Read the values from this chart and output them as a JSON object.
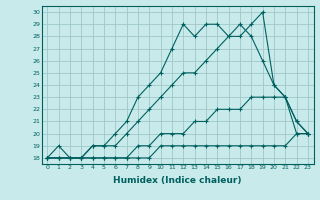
{
  "xlabel": "Humidex (Indice chaleur)",
  "ylabel": "",
  "xlim": [
    -0.5,
    23.5
  ],
  "ylim": [
    17.5,
    30.5
  ],
  "xticks": [
    0,
    1,
    2,
    3,
    4,
    5,
    6,
    7,
    8,
    9,
    10,
    11,
    12,
    13,
    14,
    15,
    16,
    17,
    18,
    19,
    20,
    21,
    22,
    23
  ],
  "yticks": [
    18,
    19,
    20,
    21,
    22,
    23,
    24,
    25,
    26,
    27,
    28,
    29,
    30
  ],
  "bg_color": "#c8eaea",
  "grid_color": "#a0c8c8",
  "line_color": "#006060",
  "line1": [
    18,
    19,
    18,
    18,
    19,
    19,
    20,
    21,
    23,
    24,
    25,
    27,
    29,
    28,
    29,
    29,
    28,
    29,
    28,
    26,
    24,
    23,
    21,
    20
  ],
  "line2": [
    18,
    18,
    18,
    18,
    19,
    19,
    19,
    20,
    21,
    22,
    23,
    24,
    25,
    25,
    26,
    27,
    28,
    28,
    29,
    30,
    24,
    23,
    21,
    20
  ],
  "line3": [
    18,
    18,
    18,
    18,
    18,
    18,
    18,
    18,
    18,
    18,
    19,
    19,
    19,
    19,
    19,
    19,
    19,
    19,
    19,
    19,
    19,
    19,
    20,
    20
  ],
  "line4": [
    18,
    18,
    18,
    18,
    18,
    18,
    18,
    18,
    19,
    19,
    20,
    20,
    20,
    21,
    21,
    22,
    22,
    22,
    23,
    23,
    23,
    23,
    20,
    20
  ]
}
